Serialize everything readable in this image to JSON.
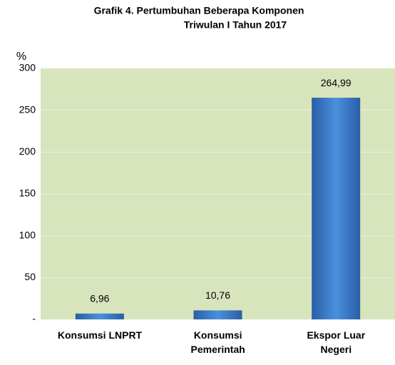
{
  "chart_data": {
    "type": "bar",
    "title": [
      "Grafik 4. Pertumbuhan Beberapa Komponen",
      "Triwulan I Tahun 2017"
    ],
    "y_label": "%",
    "categories": [
      "Konsumsi LNPRT",
      "Konsumsi\nPemerintah",
      "Ekspor Luar\nNegeri"
    ],
    "values": [
      6.96,
      10.76,
      264.99
    ],
    "value_labels": [
      "6,96",
      "10,76",
      "264,99"
    ],
    "color": "#3a78c9",
    "ylim": [
      0,
      300
    ],
    "yticks": [
      {
        "value": 0,
        "label": "-"
      },
      50,
      100,
      150,
      200,
      250,
      300
    ],
    "grid": true
  }
}
